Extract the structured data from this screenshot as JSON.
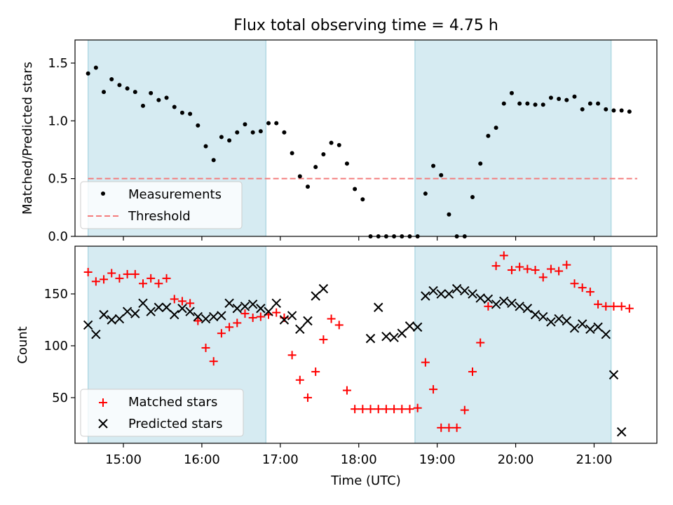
{
  "chart_data": [
    {
      "type": "scatter",
      "title": "Flux total observing time = 4.75 h",
      "xlabel": "",
      "ylabel": "Matched/Predicted stars",
      "xlim": [
        "14:23",
        "21:48"
      ],
      "ylim": [
        0,
        1.7
      ],
      "yticks": [
        0.0,
        0.5,
        1.0,
        1.5
      ],
      "ytick_labels": [
        "0.0",
        "0.5",
        "1.0",
        "1.5"
      ],
      "xtick_labels": [],
      "legend_position": "lower-left",
      "shaded_intervals": [
        [
          "14:33",
          "16:49"
        ],
        [
          "18:43",
          "21:13"
        ]
      ],
      "series": [
        {
          "name": "Measurements",
          "marker": "dot",
          "color": "#000000",
          "x": [
            "14:33",
            "14:39",
            "14:45",
            "14:51",
            "14:57",
            "15:03",
            "15:09",
            "15:15",
            "15:21",
            "15:27",
            "15:33",
            "15:39",
            "15:45",
            "15:51",
            "15:57",
            "16:03",
            "16:09",
            "16:15",
            "16:21",
            "16:27",
            "16:33",
            "16:39",
            "16:45",
            "16:51",
            "16:57",
            "17:03",
            "17:09",
            "17:15",
            "17:21",
            "17:27",
            "17:33",
            "17:39",
            "17:45",
            "17:51",
            "17:57",
            "18:03",
            "18:09",
            "18:15",
            "18:21",
            "18:27",
            "18:33",
            "18:39",
            "18:45",
            "18:51",
            "18:57",
            "19:03",
            "19:09",
            "19:15",
            "19:21",
            "19:27",
            "19:33",
            "19:39",
            "19:45",
            "19:51",
            "19:57",
            "20:03",
            "20:09",
            "20:15",
            "20:21",
            "20:27",
            "20:33",
            "20:39",
            "20:45",
            "20:51",
            "20:57",
            "21:03",
            "21:09",
            "21:15",
            "21:21",
            "21:27"
          ],
          "y": [
            1.41,
            1.46,
            1.25,
            1.36,
            1.31,
            1.28,
            1.25,
            1.13,
            1.24,
            1.18,
            1.2,
            1.12,
            1.07,
            1.06,
            0.96,
            0.78,
            0.66,
            0.86,
            0.83,
            0.9,
            0.97,
            0.9,
            0.91,
            0.98,
            0.98,
            0.9,
            0.72,
            0.52,
            0.43,
            0.6,
            0.71,
            0.81,
            0.79,
            0.63,
            0.41,
            0.32,
            0,
            0,
            0,
            0,
            0,
            0,
            0,
            0.37,
            0.61,
            0.53,
            0.19,
            0,
            0,
            0.34,
            0.63,
            0.87,
            0.94,
            1.15,
            1.24,
            1.15,
            1.15,
            1.14,
            1.14,
            1.2,
            1.19,
            1.18,
            1.21,
            1.1,
            1.15,
            1.15,
            1.1,
            1.09,
            1.09,
            1.08
          ]
        },
        {
          "name": "Threshold",
          "marker": "dashed-line",
          "color": "#f47c7c",
          "value": 0.5,
          "x": [
            "14:33",
            "21:33"
          ]
        }
      ]
    },
    {
      "type": "scatter",
      "title": "",
      "xlabel": "Time (UTC)",
      "ylabel": "Count",
      "xlim": [
        "14:23",
        "21:48"
      ],
      "ylim": [
        6,
        196
      ],
      "yticks": [
        50,
        100,
        150
      ],
      "ytick_labels": [
        "50",
        "100",
        "150"
      ],
      "xtick_labels": [
        "15:00",
        "16:00",
        "17:00",
        "18:00",
        "19:00",
        "20:00",
        "21:00"
      ],
      "legend_position": "lower-left",
      "shaded_intervals": [
        [
          "14:33",
          "16:49"
        ],
        [
          "18:43",
          "21:13"
        ]
      ],
      "series": [
        {
          "name": "Matched stars",
          "marker": "plus",
          "color": "#ff0000",
          "x": [
            "14:33",
            "14:39",
            "14:45",
            "14:51",
            "14:57",
            "15:03",
            "15:09",
            "15:15",
            "15:21",
            "15:27",
            "15:33",
            "15:39",
            "15:45",
            "15:51",
            "15:57",
            "16:03",
            "16:09",
            "16:15",
            "16:21",
            "16:27",
            "16:33",
            "16:39",
            "16:45",
            "16:51",
            "16:57",
            "17:03",
            "17:09",
            "17:15",
            "17:21",
            "17:27",
            "17:33",
            "17:39",
            "17:45",
            "17:51",
            "17:57",
            "18:03",
            "18:09",
            "18:15",
            "18:21",
            "18:27",
            "18:33",
            "18:39",
            "18:45",
            "18:51",
            "18:57",
            "19:03",
            "19:09",
            "19:15",
            "19:21",
            "19:27",
            "19:33",
            "19:39",
            "19:45",
            "19:51",
            "19:57",
            "20:03",
            "20:09",
            "20:15",
            "20:21",
            "20:27",
            "20:33",
            "20:39",
            "20:45",
            "20:51",
            "20:57",
            "21:03",
            "21:09",
            "21:15",
            "21:21",
            "21:27"
          ],
          "y": [
            171,
            162,
            164,
            170,
            165,
            169,
            169,
            160,
            165,
            160,
            165,
            145,
            143,
            141,
            124,
            98,
            85,
            112,
            118,
            122,
            131,
            127,
            128,
            130,
            132,
            127,
            91,
            67,
            50,
            75,
            106,
            126,
            120,
            57,
            39,
            39,
            39,
            39,
            39,
            39,
            39,
            39,
            40,
            84,
            58,
            21,
            21,
            21,
            38,
            75,
            103,
            138,
            177,
            187,
            173,
            176,
            174,
            173,
            166,
            174,
            172,
            178,
            160,
            156,
            152,
            140,
            138,
            138,
            138,
            136
          ]
        },
        {
          "name": "Predicted stars",
          "marker": "x",
          "color": "#000000",
          "x": [
            "14:33",
            "14:39",
            "14:45",
            "14:51",
            "14:57",
            "15:03",
            "15:09",
            "15:15",
            "15:21",
            "15:27",
            "15:33",
            "15:39",
            "15:45",
            "15:51",
            "15:57",
            "16:03",
            "16:09",
            "16:15",
            "16:21",
            "16:27",
            "16:33",
            "16:39",
            "16:45",
            "16:51",
            "16:57",
            "17:03",
            "17:09",
            "17:15",
            "17:21",
            "17:27",
            "17:33",
            "18:09",
            "18:15",
            "18:21",
            "18:27",
            "18:33",
            "18:39",
            "18:45",
            "18:51",
            "18:57",
            "19:03",
            "19:09",
            "19:15",
            "19:21",
            "19:27",
            "19:33",
            "19:39",
            "19:45",
            "19:51",
            "19:57",
            "20:03",
            "20:09",
            "20:15",
            "20:21",
            "20:27",
            "20:33",
            "20:39",
            "20:45",
            "20:51",
            "20:57",
            "21:03",
            "21:09",
            "21:15",
            "21:21"
          ],
          "y": [
            120,
            111,
            130,
            125,
            126,
            133,
            131,
            141,
            133,
            137,
            137,
            130,
            136,
            133,
            128,
            126,
            128,
            129,
            141,
            136,
            138,
            140,
            136,
            133,
            141,
            125,
            129,
            116,
            124,
            148,
            155,
            107,
            137,
            109,
            108,
            112,
            119,
            118,
            148,
            153,
            150,
            150,
            155,
            153,
            150,
            146,
            145,
            140,
            143,
            141,
            138,
            136,
            130,
            128,
            123,
            126,
            124,
            117,
            121,
            116,
            118,
            111,
            72,
            17
          ]
        }
      ]
    }
  ]
}
